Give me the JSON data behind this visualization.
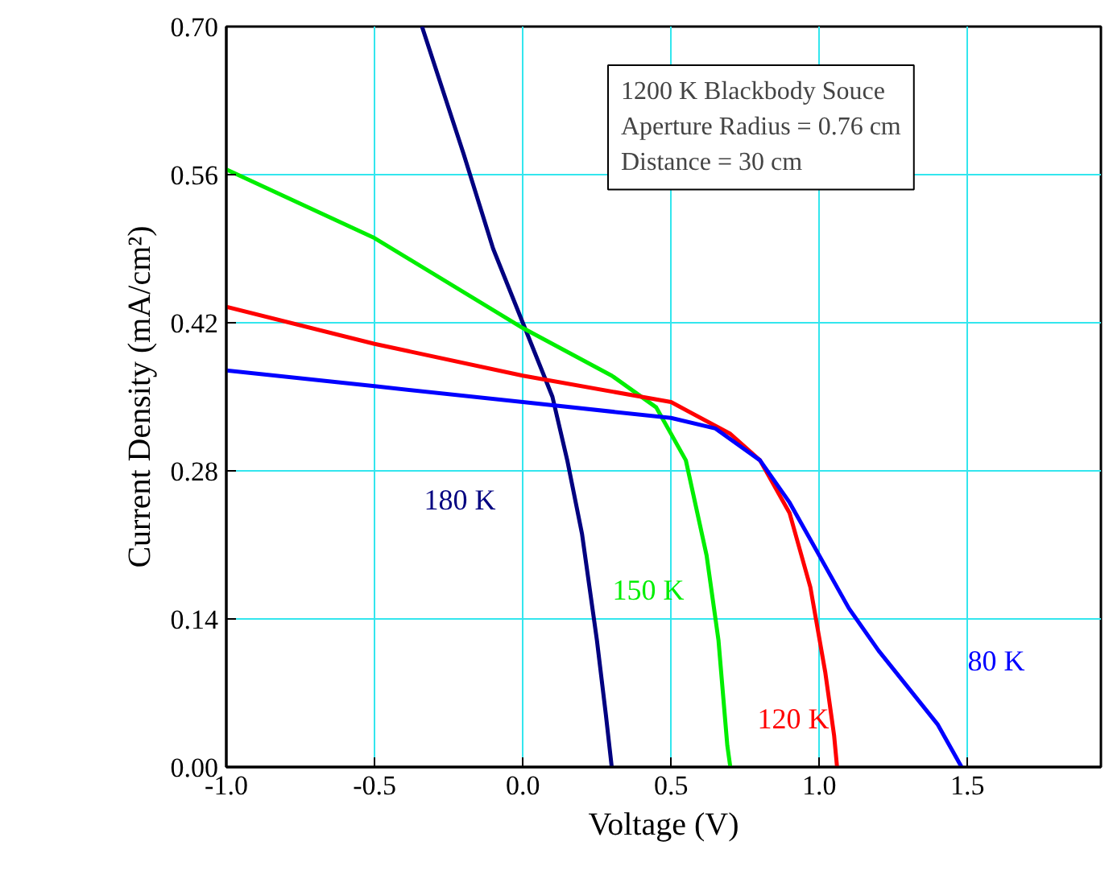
{
  "chart_data": {
    "type": "line",
    "xlabel": "Voltage (V)",
    "ylabel": "Current Density (mA/cm²)",
    "xlim": [
      -1.0,
      1.95
    ],
    "ylim": [
      0.0,
      0.7
    ],
    "xticks": [
      {
        "value": -1.0,
        "label": "-1.0"
      },
      {
        "value": -0.5,
        "label": "-0.5"
      },
      {
        "value": 0,
        "label": "0.0"
      },
      {
        "value": 0.5,
        "label": "0.5"
      },
      {
        "value": 1.0,
        "label": "1.0"
      },
      {
        "value": 1.5,
        "label": "1.5"
      }
    ],
    "yticks": [
      {
        "value": 0,
        "label": "0.00"
      },
      {
        "value": 0.14,
        "label": "0.14"
      },
      {
        "value": 0.28,
        "label": "0.28"
      },
      {
        "value": 0.42,
        "label": "0.42"
      },
      {
        "value": 0.56,
        "label": "0.56"
      },
      {
        "value": 0.7,
        "label": "0.70"
      }
    ],
    "grid": true,
    "marker": "none",
    "line_style": "solid",
    "series": [
      {
        "name": "180 K",
        "color": "#000080",
        "x": [
          -0.34,
          -0.2,
          -0.1,
          0.0,
          0.1,
          0.15,
          0.2,
          0.25,
          0.28,
          0.3
        ],
        "values": [
          0.7,
          0.58,
          0.49,
          0.42,
          0.35,
          0.29,
          0.22,
          0.12,
          0.05,
          0.0
        ]
      },
      {
        "name": "150 K",
        "color": "#00ee00",
        "x": [
          -1.0,
          -0.5,
          0.0,
          0.3,
          0.45,
          0.55,
          0.62,
          0.66,
          0.69,
          0.7
        ],
        "values": [
          0.565,
          0.5,
          0.415,
          0.37,
          0.34,
          0.29,
          0.2,
          0.12,
          0.02,
          0.0
        ]
      },
      {
        "name": "120 K",
        "color": "#ff0000",
        "x": [
          -1.0,
          -0.5,
          0.0,
          0.5,
          0.7,
          0.8,
          0.9,
          0.97,
          1.02,
          1.05,
          1.06
        ],
        "values": [
          0.435,
          0.4,
          0.37,
          0.345,
          0.315,
          0.29,
          0.24,
          0.17,
          0.09,
          0.03,
          0.0
        ]
      },
      {
        "name": "80 K",
        "color": "#0000ff",
        "x": [
          -1.0,
          -0.5,
          0.0,
          0.5,
          0.65,
          0.8,
          0.9,
          1.0,
          1.1,
          1.2,
          1.3,
          1.4,
          1.48
        ],
        "values": [
          0.375,
          0.36,
          0.345,
          0.33,
          0.32,
          0.29,
          0.25,
          0.2,
          0.15,
          0.11,
          0.075,
          0.04,
          0.0
        ]
      }
    ],
    "annotations": [
      "1200 K Blackbody Souce",
      "Aperture Radius = 0.76 cm",
      "Distance = 30 cm"
    ]
  }
}
